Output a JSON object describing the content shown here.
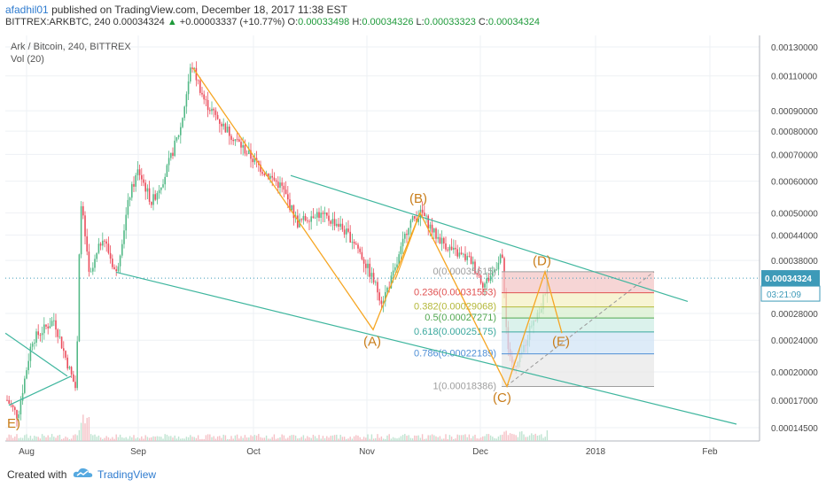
{
  "header": {
    "user": "afadhil01",
    "published": "published on TradingView.com, December 18, 2017 11:38 EST",
    "symbol": "BITTREX:ARKBTC, 240",
    "last": "0.00034324",
    "arrow": "▲",
    "change": "+0.00003337 (+10.77%)",
    "o_label": "O:",
    "o_value": "0.00033498",
    "h_label": "H:",
    "h_value": "0.00034326",
    "l_label": "L:",
    "l_value": "0.00033323",
    "c_label": "C:",
    "c_value": "0.00034324"
  },
  "chart_data": {
    "type": "candlestick",
    "title": "Ark / Bitcoin, 240, BITTREX",
    "indicator": "Vol (20)",
    "x_ticks": [
      "Aug",
      "Sep",
      "Oct",
      "Nov",
      "Dec",
      "2018",
      "Feb"
    ],
    "y_ticks": [
      0.0013,
      0.0011,
      0.0009,
      0.0008,
      0.0007,
      0.0006,
      0.0005,
      0.00044,
      0.00038,
      0.00034324,
      0.00028,
      0.00024,
      0.0002,
      0.00017,
      0.000145
    ],
    "y_tick_labels": [
      "0.00130000",
      "0.00110000",
      "0.00090000",
      "0.00080000",
      "0.00070000",
      "0.00060000",
      "0.00050000",
      "0.00044000",
      "0.00038000",
      "0.00034324",
      "0.00028000",
      "0.00024000",
      "0.00020000",
      "0.00017000",
      "0.00014500"
    ],
    "y_scale": "log",
    "last_price_label": "0.00034324",
    "countdown_label": "03:21:09",
    "wave_labels": [
      "(A)",
      "(B)",
      "(C)",
      "(D)",
      "(E)",
      "E)"
    ],
    "fib_levels": [
      {
        "ratio": "0",
        "value": 0.00035615,
        "label": "0(0.00035615)",
        "color": "#9e9e9e"
      },
      {
        "ratio": "0.236",
        "value": 0.00031553,
        "label": "0.236(0.00031553)",
        "color": "#e05252"
      },
      {
        "ratio": "0.382",
        "value": 0.00029068,
        "label": "0.382(0.00029068)",
        "color": "#b4b83a"
      },
      {
        "ratio": "0.5",
        "value": 0.00027271,
        "label": "0.5(0.00027271)",
        "color": "#52a852"
      },
      {
        "ratio": "0.618",
        "value": 0.00025175,
        "label": "0.618(0.00025175)",
        "color": "#3aa89e"
      },
      {
        "ratio": "0.786",
        "value": 0.00022189,
        "label": "0.786(0.00022189)",
        "color": "#4f8fd6"
      },
      {
        "ratio": "1",
        "value": 0.00018386,
        "label": "1(0.00018386)",
        "color": "#9e9e9e"
      }
    ],
    "colors": {
      "up": "#53b987",
      "down": "#eb4d5c",
      "wave": "#f6a623",
      "trend": "#3fb69e",
      "price_badge": "#3d9ab8",
      "grid": "#eef1f4"
    }
  },
  "footer": {
    "created_with": "Created with",
    "brand": "TradingView"
  }
}
